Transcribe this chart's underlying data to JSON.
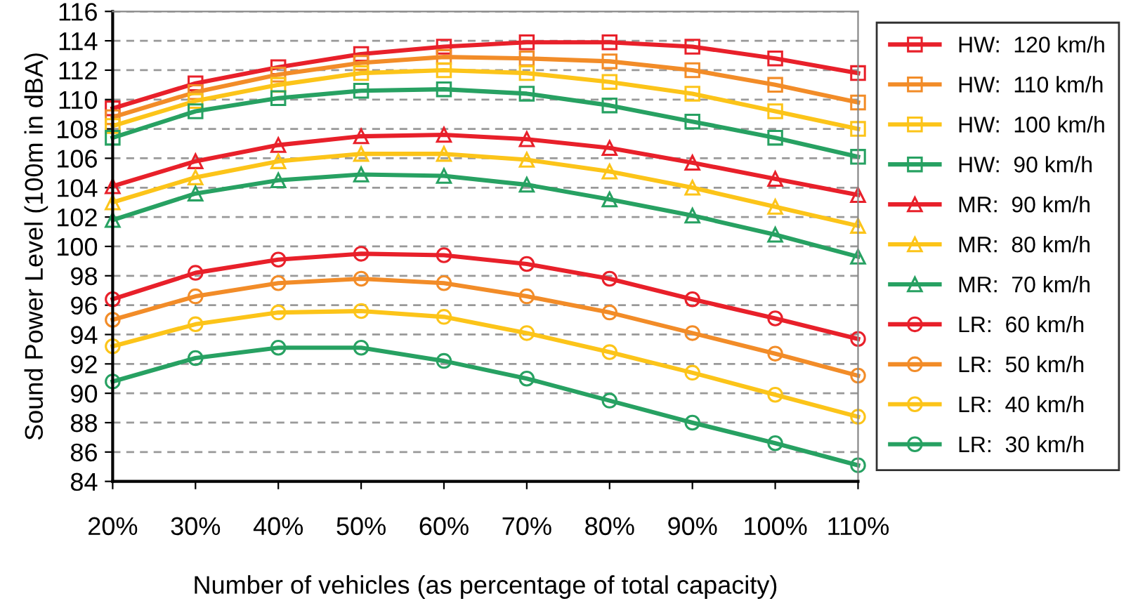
{
  "chart_data": {
    "type": "line",
    "xlabel": "Number of vehicles (as percentage of total capacity)",
    "ylabel": "Sound Power Level (100m in dBA)",
    "categories": [
      "20%",
      "30%",
      "40%",
      "50%",
      "60%",
      "70%",
      "80%",
      "90%",
      "100%",
      "110%"
    ],
    "ylim": [
      84,
      116
    ],
    "yticks": [
      84,
      86,
      88,
      90,
      92,
      94,
      96,
      98,
      100,
      102,
      104,
      106,
      108,
      110,
      112,
      114,
      116
    ],
    "grid": "y",
    "legend": "right",
    "line_style": "solid",
    "series": [
      {
        "name": "HW:  120 km/h",
        "color": "#e8202a",
        "marker": "square",
        "values": [
          109.4,
          111.1,
          112.2,
          113.1,
          113.6,
          113.9,
          113.9,
          113.6,
          112.8,
          111.8
        ]
      },
      {
        "name": "HW:  110 km/h",
        "color": "#f28c28",
        "marker": "square",
        "values": [
          108.8,
          110.5,
          111.7,
          112.5,
          112.9,
          112.8,
          112.6,
          112.0,
          111.0,
          109.8
        ]
      },
      {
        "name": "HW:  100 km/h",
        "color": "#fcc419",
        "marker": "square",
        "values": [
          108.2,
          109.9,
          111.0,
          111.8,
          112.0,
          111.8,
          111.2,
          110.4,
          109.2,
          108.0
        ]
      },
      {
        "name": "HW:  90 km/h",
        "color": "#27a162",
        "marker": "square",
        "values": [
          107.4,
          109.2,
          110.1,
          110.6,
          110.7,
          110.4,
          109.6,
          108.5,
          107.4,
          106.1
        ]
      },
      {
        "name": "MR:  90 km/h",
        "color": "#e8202a",
        "marker": "triangle",
        "values": [
          104.1,
          105.8,
          106.9,
          107.5,
          107.6,
          107.3,
          106.7,
          105.7,
          104.6,
          103.5
        ]
      },
      {
        "name": "MR:  80 km/h",
        "color": "#fcc419",
        "marker": "triangle",
        "values": [
          103.0,
          104.7,
          105.8,
          106.3,
          106.3,
          105.9,
          105.1,
          104.0,
          102.7,
          101.4
        ]
      },
      {
        "name": "MR:  70 km/h",
        "color": "#27a162",
        "marker": "triangle",
        "values": [
          101.8,
          103.6,
          104.5,
          104.9,
          104.8,
          104.2,
          103.2,
          102.1,
          100.8,
          99.3
        ]
      },
      {
        "name": "LR:  60 km/h",
        "color": "#e8202a",
        "marker": "circle",
        "values": [
          96.4,
          98.2,
          99.1,
          99.5,
          99.4,
          98.8,
          97.8,
          96.4,
          95.1,
          93.7
        ]
      },
      {
        "name": "LR:  50 km/h",
        "color": "#f28c28",
        "marker": "circle",
        "values": [
          95.0,
          96.6,
          97.5,
          97.8,
          97.5,
          96.6,
          95.5,
          94.1,
          92.7,
          91.2
        ]
      },
      {
        "name": "LR:  40 km/h",
        "color": "#fcc419",
        "marker": "circle",
        "values": [
          93.2,
          94.7,
          95.5,
          95.6,
          95.2,
          94.1,
          92.8,
          91.4,
          89.9,
          88.4
        ]
      },
      {
        "name": "LR:  30 km/h",
        "color": "#27a162",
        "marker": "circle",
        "values": [
          90.8,
          92.4,
          93.1,
          93.1,
          92.2,
          91.0,
          89.5,
          88.0,
          86.6,
          85.1
        ]
      }
    ]
  }
}
